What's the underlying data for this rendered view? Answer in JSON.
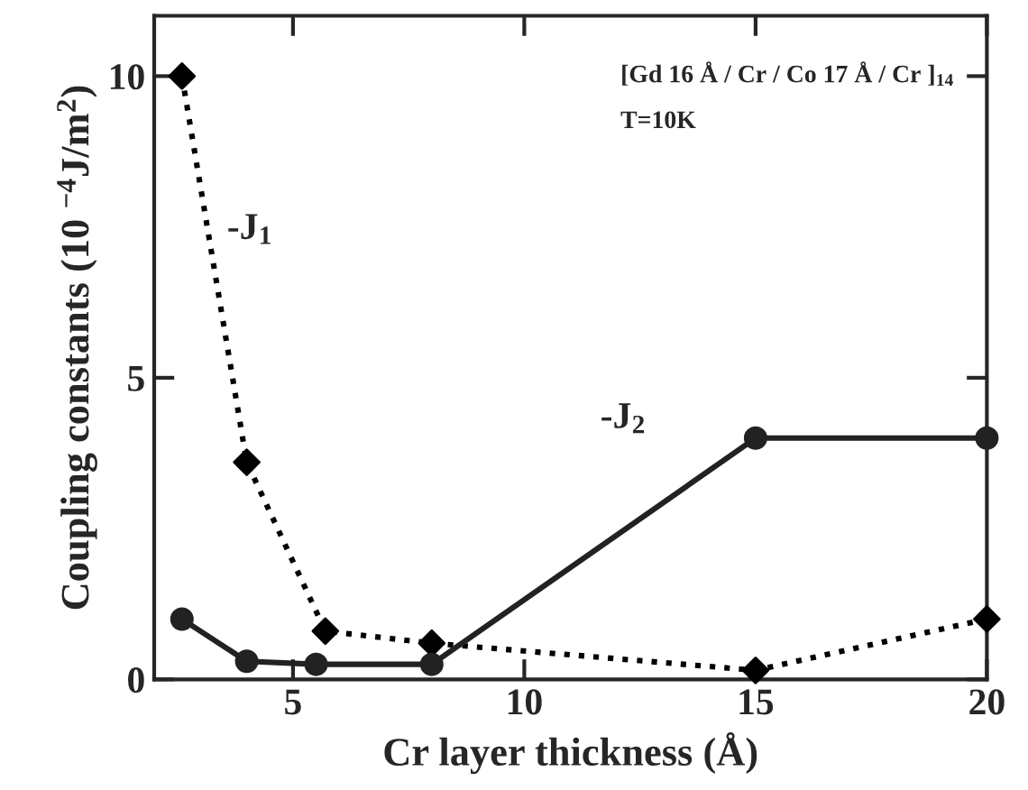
{
  "chart_data": {
    "type": "line",
    "xlabel": "Cr layer thickness (Å)",
    "ylabel": "Coupling constants (10 $^{−4}$J/m$^{2}$)",
    "xlim": [
      2,
      20
    ],
    "ylim": [
      0,
      11
    ],
    "xticks": [
      5,
      10,
      15,
      20
    ],
    "yticks": [
      0,
      5,
      10
    ],
    "grid": false,
    "legend": false,
    "series": [
      {
        "name": "-J$_{1}$",
        "color": "#000000",
        "marker": "diamond",
        "line_style": "dotted",
        "x": [
          2.6,
          4,
          5.7,
          8,
          15,
          20
        ],
        "values": [
          10,
          3.6,
          0.8,
          0.6,
          0.15,
          1.0
        ]
      },
      {
        "name": "-J$_{2}$",
        "color": "#222222",
        "marker": "circle",
        "line_style": "solid",
        "x": [
          2.6,
          4,
          5.5,
          8,
          15,
          20
        ],
        "values": [
          1.0,
          0.3,
          0.25,
          0.25,
          4.0,
          4.0
        ]
      }
    ],
    "annotations": [
      "[Gd 16 Å / Cr / Co 17 Å / Cr ]$_{14}$",
      "T=10K"
    ]
  }
}
